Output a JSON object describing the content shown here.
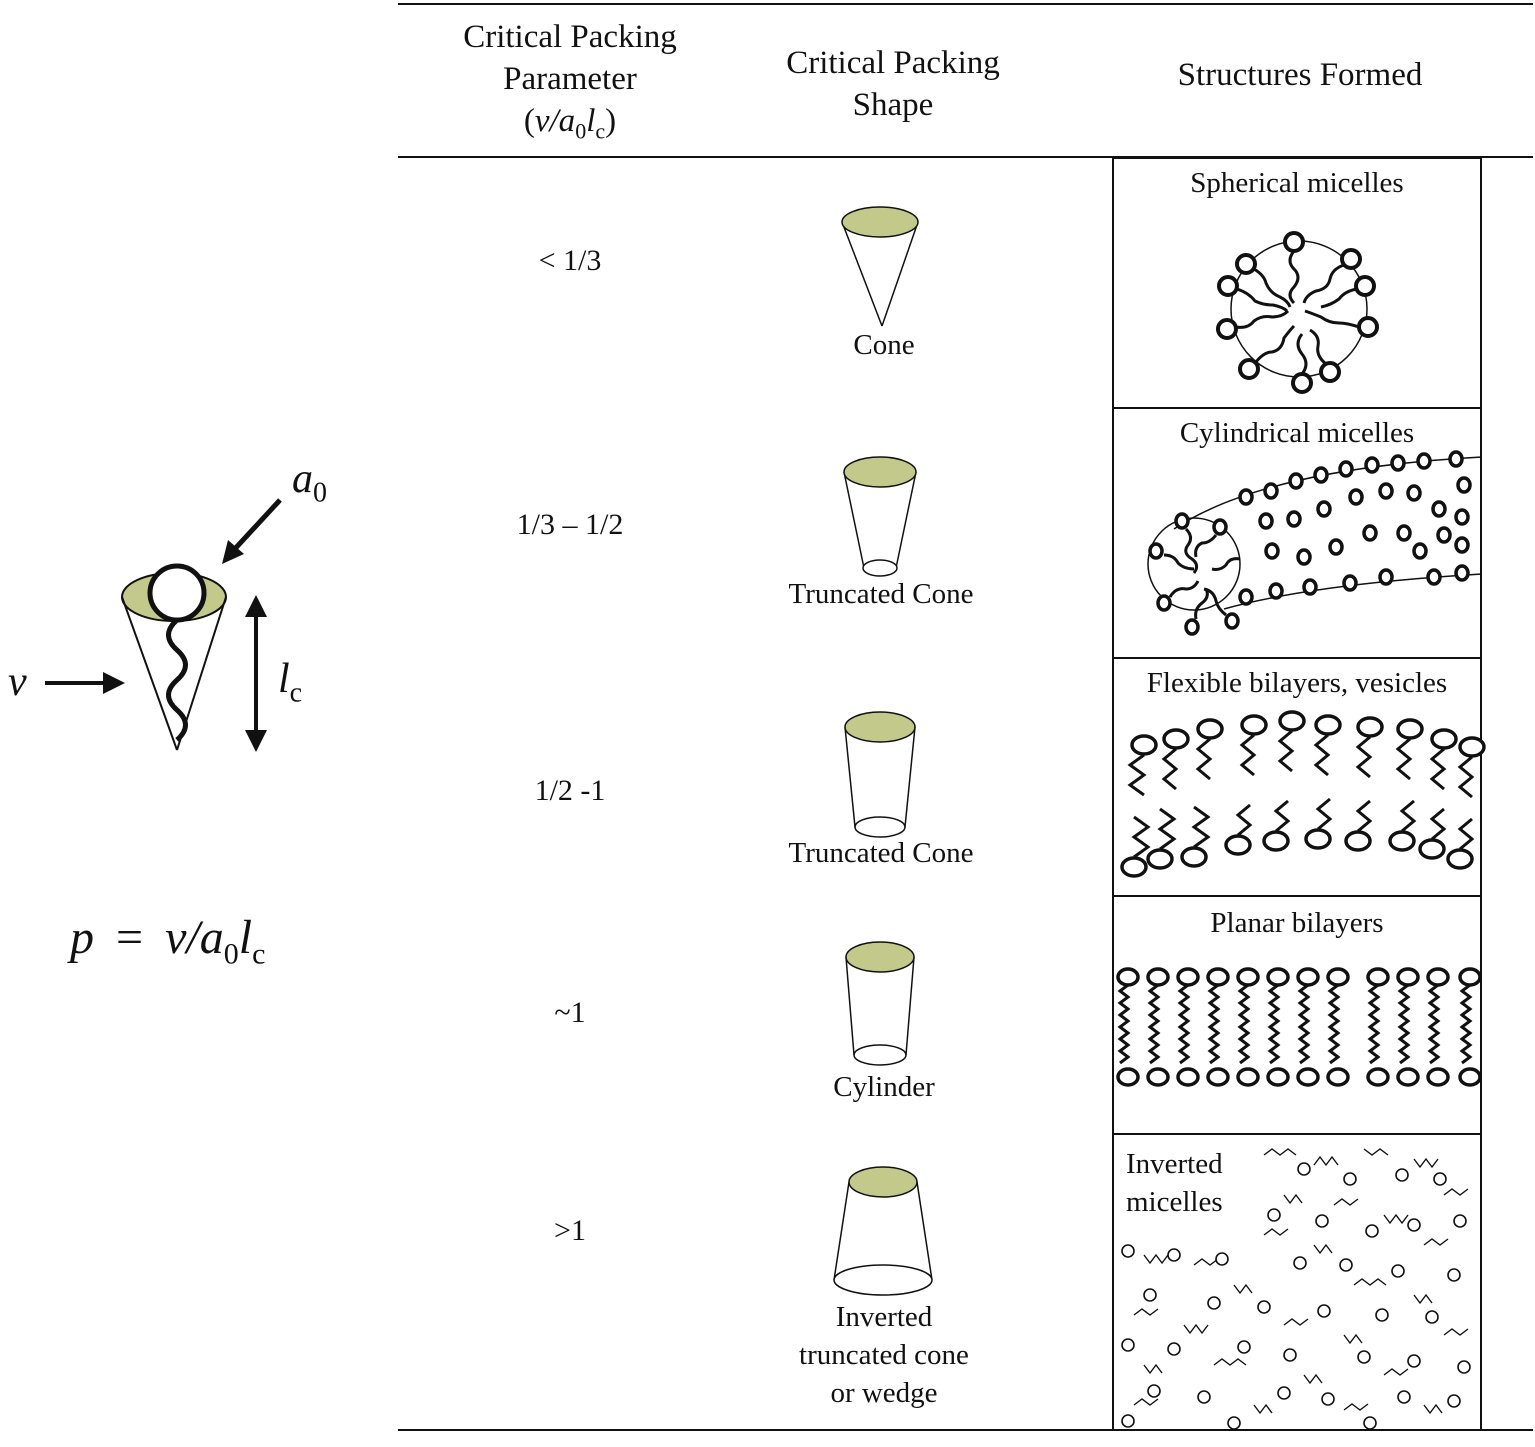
{
  "left_diagram": {
    "label_a0": "a",
    "label_a0_sub": "0",
    "label_v": "v",
    "label_lc": "l",
    "label_lc_sub": "c",
    "formula": {
      "p": "p",
      "eq": "=",
      "v": "v/a",
      "sub0": "0",
      "l": "l",
      "subc": "c"
    },
    "head_fill": "#c2c98a"
  },
  "table": {
    "headers": {
      "col1_line1": "Critical Packing",
      "col1_line2": "Parameter",
      "col1_line3_open": "(",
      "col1_line3_v": "v/a",
      "col1_line3_sub0": "0",
      "col1_line3_l": "l",
      "col1_line3_subc": "c",
      "col1_line3_close": ")",
      "col2_line1": "Critical Packing",
      "col2_line2": "Shape",
      "col3": "Structures Formed"
    },
    "rows": [
      {
        "parameter": "< 1/3",
        "shape": "Cone",
        "structure": "Spherical micelles"
      },
      {
        "parameter": "1/3 – 1/2",
        "shape": "Truncated Cone",
        "structure": "Cylindrical micelles"
      },
      {
        "parameter": "1/2 -1",
        "shape": "Truncated Cone",
        "structure": "Flexible bilayers, vesicles"
      },
      {
        "parameter": "~1",
        "shape": "Cylinder",
        "structure": "Planar bilayers"
      },
      {
        "parameter": ">1",
        "shape_line1": "Inverted",
        "shape_line2": "truncated cone",
        "shape_line3": "or wedge",
        "structure_line1": "Inverted",
        "structure_line2": "micelles"
      }
    ],
    "shape_fill": "#c2c98a"
  }
}
